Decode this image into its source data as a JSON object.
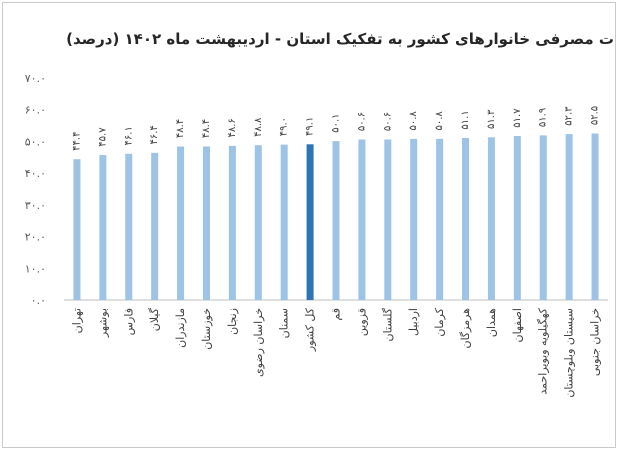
{
  "chart_data": {
    "type": "bar",
    "title": "ت مصرفی خانوارهای کشور به تفکیک استان - اردیبهشت ماه ۱۴۰۲ (درصد)",
    "xlabel": "",
    "ylabel": "",
    "ylim": [
      0,
      70
    ],
    "yticks": [
      0,
      10,
      20,
      30,
      40,
      50,
      60,
      70
    ],
    "ytick_labels": [
      "۰.۰",
      "۱۰.۰",
      "۲۰.۰",
      "۳۰.۰",
      "۴۰.۰",
      "۵۰.۰",
      "۶۰.۰",
      "۷۰.۰"
    ],
    "grid": false,
    "legend": "none",
    "bar_color": "#9dc3e6",
    "highlight_color": "#2e75b6",
    "highlight_category": "کل کشور",
    "categories": [
      "تهران",
      "بوشهر",
      "فارس",
      "گیلان",
      "مازندران",
      "خوزستان",
      "زنجان",
      "خراسان رضوی",
      "سمنان",
      "کل کشور",
      "قم",
      "قزوین",
      "گلستان",
      "اردبیل",
      "کرمان",
      "هرمزگان",
      "همدان",
      "اصفهان",
      "کهگیلویه وبویراحمد",
      "سیستان وبلوچستان",
      "خراسان جنوبی"
    ],
    "values": [
      44.4,
      45.7,
      46.1,
      46.4,
      48.4,
      48.4,
      48.6,
      48.8,
      49.0,
      49.1,
      50.1,
      50.6,
      50.6,
      50.8,
      50.8,
      51.1,
      51.3,
      51.7,
      51.9,
      52.3,
      52.5
    ],
    "value_labels": [
      "۴۴.۴",
      "۴۵.۷",
      "۴۶.۱",
      "۴۶.۴",
      "۴۸.۴",
      "۴۸.۴",
      "۴۸.۶",
      "۴۸.۸",
      "۴۹.۰",
      "۴۹.۱",
      "۵۰.۱",
      "۵۰.۶",
      "۵۰.۶",
      "۵۰.۸",
      "۵۰.۸",
      "۵۱.۱",
      "۵۱.۳",
      "۵۱.۷",
      "۵۱.۹",
      "۵۲.۳",
      "۵۲.۵"
    ]
  }
}
